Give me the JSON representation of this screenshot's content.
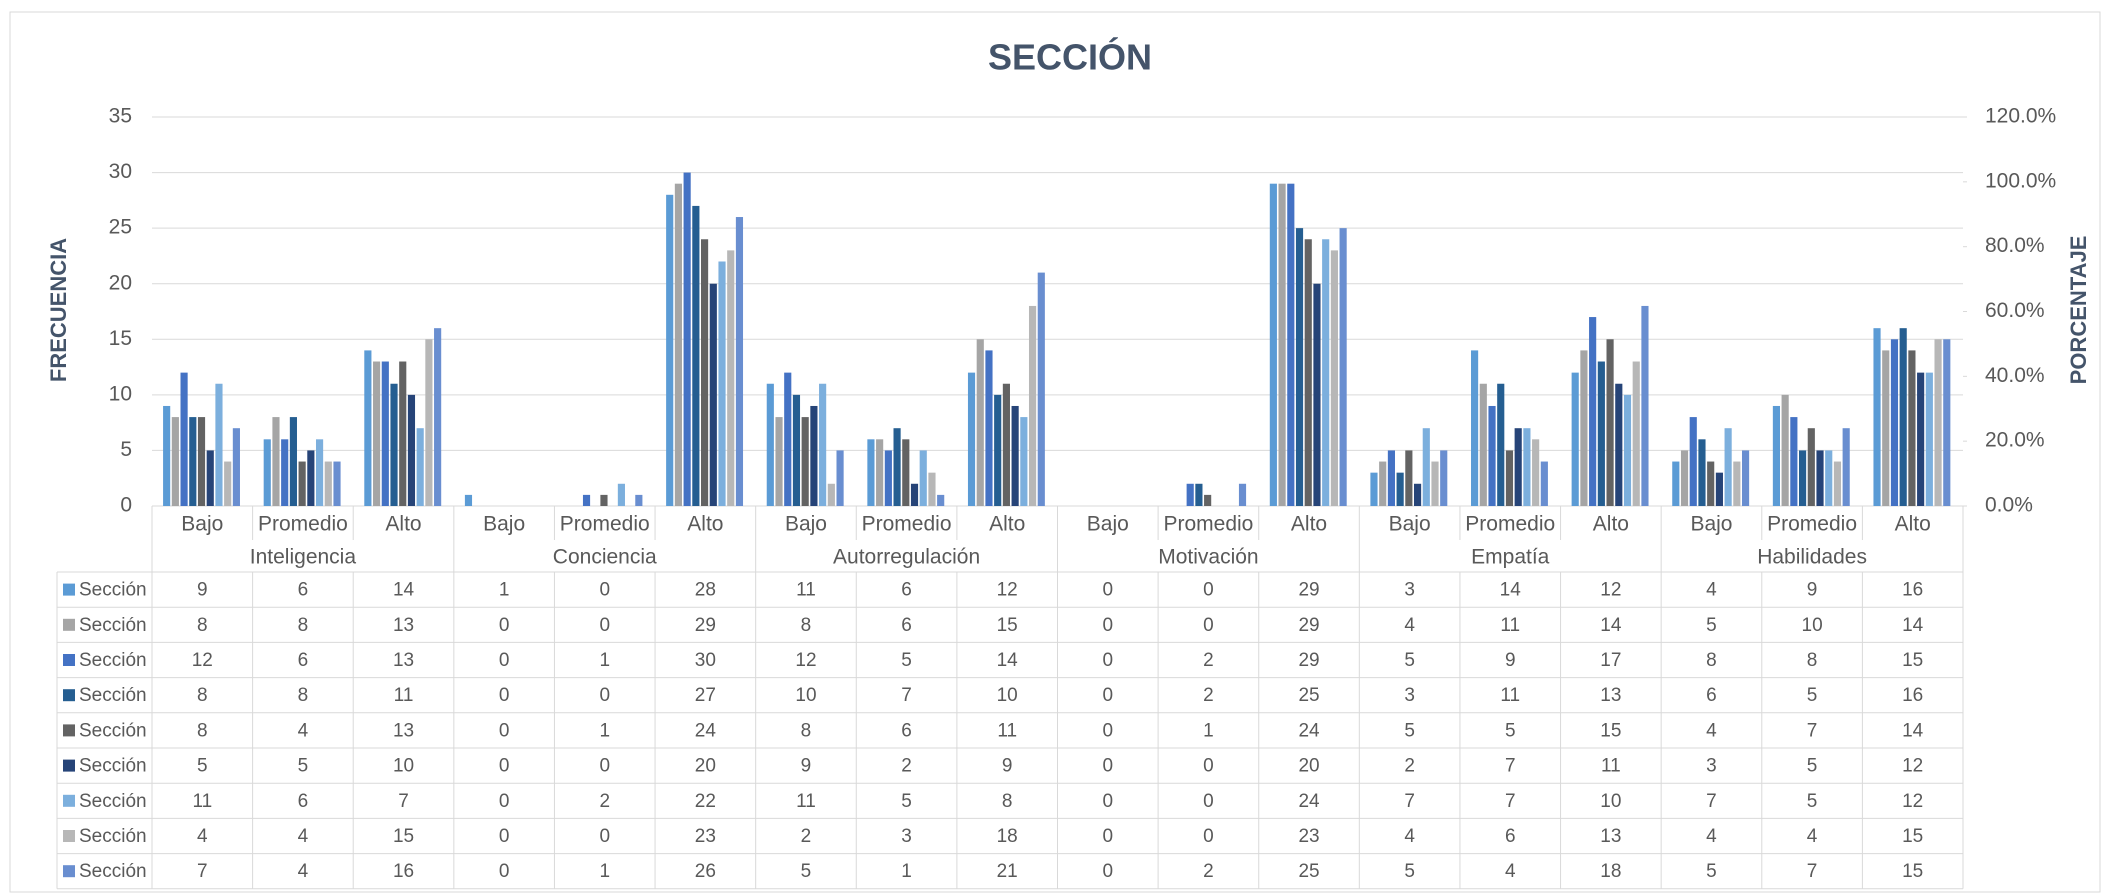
{
  "chart_data": {
    "type": "bar",
    "title": "SECCIÓN",
    "y_label": "FRECUENCIA",
    "y2_label": "PORCENTAJE",
    "categories": [
      "Bajo",
      "Promedio",
      "Alto",
      "Bajo",
      "Promedio",
      "Alto",
      "Bajo",
      "Promedio",
      "Alto",
      "Bajo",
      "Promedio",
      "Alto",
      "Bajo",
      "Promedio",
      "Alto",
      "Bajo",
      "Promedio",
      "Alto"
    ],
    "groups": [
      "Inteligencia",
      "Conciencia",
      "Autorregulación",
      "Motivación",
      "Empatía",
      "Habilidades"
    ],
    "series": [
      {
        "name": "Sección",
        "color": "#5b9bd5",
        "values": [
          9,
          6,
          14,
          1,
          0,
          28,
          11,
          6,
          12,
          0,
          0,
          29,
          3,
          14,
          12,
          4,
          9,
          16
        ]
      },
      {
        "name": "Sección",
        "color": "#a5a5a5",
        "values": [
          8,
          8,
          13,
          0,
          0,
          29,
          8,
          6,
          15,
          0,
          0,
          29,
          4,
          11,
          14,
          5,
          10,
          14
        ]
      },
      {
        "name": "Sección",
        "color": "#4472c4",
        "values": [
          12,
          6,
          13,
          0,
          1,
          30,
          12,
          5,
          14,
          0,
          2,
          29,
          5,
          9,
          17,
          8,
          8,
          15
        ]
      },
      {
        "name": "Sección",
        "color": "#255e91",
        "values": [
          8,
          8,
          11,
          0,
          0,
          27,
          10,
          7,
          10,
          0,
          2,
          25,
          3,
          11,
          13,
          6,
          5,
          16
        ]
      },
      {
        "name": "Sección",
        "color": "#636363",
        "values": [
          8,
          4,
          13,
          0,
          1,
          24,
          8,
          6,
          11,
          0,
          1,
          24,
          5,
          5,
          15,
          4,
          7,
          14
        ]
      },
      {
        "name": "Sección",
        "color": "#264478",
        "values": [
          5,
          5,
          10,
          0,
          0,
          20,
          9,
          2,
          9,
          0,
          0,
          20,
          2,
          7,
          11,
          3,
          5,
          12
        ]
      },
      {
        "name": "Sección",
        "color": "#7cafdd",
        "values": [
          11,
          6,
          7,
          0,
          2,
          22,
          11,
          5,
          8,
          0,
          0,
          24,
          7,
          7,
          10,
          7,
          5,
          12
        ]
      },
      {
        "name": "Sección",
        "color": "#b7b7b7",
        "values": [
          4,
          4,
          15,
          0,
          0,
          23,
          2,
          3,
          18,
          0,
          0,
          23,
          4,
          6,
          13,
          4,
          4,
          15
        ]
      },
      {
        "name": "Sección",
        "color": "#698ed0",
        "values": [
          7,
          4,
          16,
          0,
          1,
          26,
          5,
          1,
          21,
          0,
          2,
          25,
          5,
          4,
          18,
          5,
          7,
          15
        ]
      }
    ],
    "ylim": [
      0,
      35
    ],
    "yticks": [
      0,
      5,
      10,
      15,
      20,
      25,
      30,
      35
    ],
    "y2lim": [
      0,
      120
    ],
    "y2ticks": [
      {
        "value": 0,
        "label": "0.0%"
      },
      {
        "value": 20,
        "label": "20.0%"
      },
      {
        "value": 40,
        "label": "40.0%"
      },
      {
        "value": 60,
        "label": "60.0%"
      },
      {
        "value": 80,
        "label": "80.0%"
      },
      {
        "value": 100,
        "label": "100.0%"
      },
      {
        "value": 120,
        "label": "120.0%"
      }
    ],
    "grid": true
  }
}
